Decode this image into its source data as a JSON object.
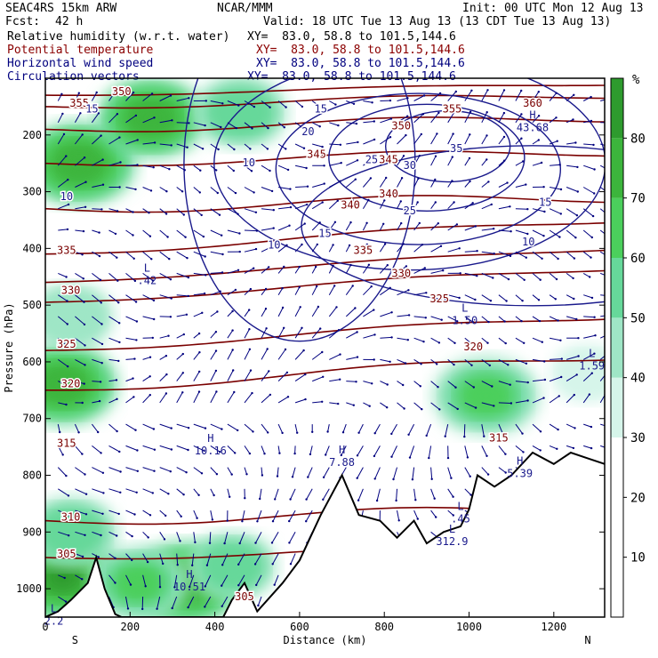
{
  "header": {
    "model": "SEAC4RS 15km ARW",
    "org": "NCAR/MMM",
    "init": "Init: 00 UTC Mon 12 Aug 13",
    "fcst_label": "Fcst:",
    "fcst_value": "42 h",
    "valid": "Valid: 18 UTC Tue 13 Aug 13 (13 CDT Tue 13 Aug 13)",
    "fields": [
      {
        "name": "Relative humidity (w.r.t. water)",
        "xy": "XY=  83.0, 58.8 to 101.5,144.6",
        "color": "#000000"
      },
      {
        "name": "Potential temperature",
        "xy": "XY=  83.0, 58.8 to 101.5,144.6",
        "color": "#8b0000"
      },
      {
        "name": "Horizontal wind speed",
        "xy": "XY=  83.0, 58.8 to 101.5,144.6",
        "color": "#00007f"
      },
      {
        "name": "Circulation vectors",
        "xy": "XY=  83.0, 58.8 to 101.5,144.6",
        "color": "#00007f"
      }
    ]
  },
  "chart_data": {
    "type": "heatmap",
    "xlabel": "Distance (km)",
    "ylabel": "Pressure (hPa)",
    "xlim": [
      0,
      1320
    ],
    "ylim": [
      1050,
      100
    ],
    "x_ticks": [
      0,
      200,
      400,
      600,
      800,
      1000,
      1200
    ],
    "y_ticks": [
      200,
      300,
      400,
      500,
      600,
      700,
      800,
      900,
      1000
    ],
    "endpoint_labels": {
      "left": "S",
      "right": "N"
    },
    "colorbar": {
      "unit": "%",
      "levels": [
        10,
        20,
        30,
        40,
        50,
        60,
        70,
        80
      ],
      "colors": [
        "#ffffff",
        "#ffffff",
        "#ffffff",
        "#d6f5ea",
        "#9fe6c6",
        "#66d89a",
        "#4bcf5c",
        "#3cb53c",
        "#2e9b2e"
      ]
    },
    "humid_regions": [
      {
        "x": 80,
        "p": 250,
        "rh": 75
      },
      {
        "x": 250,
        "p": 170,
        "rh": 70
      },
      {
        "x": 460,
        "p": 160,
        "rh": 55
      },
      {
        "x": 40,
        "p": 640,
        "rh": 72
      },
      {
        "x": 60,
        "p": 520,
        "rh": 45
      },
      {
        "x": 1040,
        "p": 660,
        "rh": 68
      },
      {
        "x": 1280,
        "p": 620,
        "rh": 35
      },
      {
        "x": 40,
        "p": 980,
        "rh": 80
      },
      {
        "x": 60,
        "p": 900,
        "rh": 55
      },
      {
        "x": 330,
        "p": 990,
        "rh": 75
      },
      {
        "x": 220,
        "p": 990,
        "rh": 60
      },
      {
        "x": 440,
        "p": 960,
        "rh": 50
      }
    ],
    "theta_labels": [
      {
        "text": "350",
        "x": 180,
        "p": 130
      },
      {
        "text": "355",
        "x": 80,
        "p": 150
      },
      {
        "text": "350",
        "x": 840,
        "p": 190
      },
      {
        "text": "355",
        "x": 960,
        "p": 160
      },
      {
        "text": "360",
        "x": 1150,
        "p": 150
      },
      {
        "text": "345",
        "x": 640,
        "p": 240
      },
      {
        "text": "345",
        "x": 810,
        "p": 250
      },
      {
        "text": "340",
        "x": 720,
        "p": 330
      },
      {
        "text": "340",
        "x": 810,
        "p": 310
      },
      {
        "text": "335",
        "x": 50,
        "p": 410
      },
      {
        "text": "335",
        "x": 750,
        "p": 410
      },
      {
        "text": "330",
        "x": 60,
        "p": 480
      },
      {
        "text": "330",
        "x": 840,
        "p": 450
      },
      {
        "text": "325",
        "x": 50,
        "p": 575
      },
      {
        "text": "325",
        "x": 930,
        "p": 495
      },
      {
        "text": "320",
        "x": 60,
        "p": 645
      },
      {
        "text": "320",
        "x": 1010,
        "p": 580
      },
      {
        "text": "315",
        "x": 50,
        "p": 750
      },
      {
        "text": "315",
        "x": 1070,
        "p": 740
      },
      {
        "text": "310",
        "x": 60,
        "p": 880
      },
      {
        "text": "305",
        "x": 50,
        "p": 945
      },
      {
        "text": "305",
        "x": 470,
        "p": 1020
      }
    ],
    "speed_labels": [
      {
        "text": "15",
        "x": 110,
        "p": 160
      },
      {
        "text": "15",
        "x": 650,
        "p": 160
      },
      {
        "text": "20",
        "x": 620,
        "p": 200
      },
      {
        "text": "25",
        "x": 770,
        "p": 250
      },
      {
        "text": "30",
        "x": 860,
        "p": 260
      },
      {
        "text": "35",
        "x": 970,
        "p": 230
      },
      {
        "text": "25",
        "x": 860,
        "p": 340
      },
      {
        "text": "10",
        "x": 50,
        "p": 315
      },
      {
        "text": "10",
        "x": 480,
        "p": 255
      },
      {
        "text": "10",
        "x": 540,
        "p": 400
      },
      {
        "text": "15",
        "x": 660,
        "p": 380
      },
      {
        "text": "15",
        "x": 1180,
        "p": 325
      },
      {
        "text": "10",
        "x": 1140,
        "p": 395
      }
    ],
    "extrema": [
      {
        "kind": "H",
        "value": "43.68",
        "x": 1150,
        "p": 190
      },
      {
        "kind": "L",
        "value": ".42",
        "x": 240,
        "p": 460
      },
      {
        "kind": "L",
        "value": "1.50",
        "x": 990,
        "p": 530
      },
      {
        "kind": "L",
        "value": "1.59",
        "x": 1290,
        "p": 610
      },
      {
        "kind": "H",
        "value": "10.16",
        "x": 390,
        "p": 760
      },
      {
        "kind": "H",
        "value": "7.88",
        "x": 700,
        "p": 780
      },
      {
        "kind": "H",
        "value": "5.39",
        "x": 1120,
        "p": 800
      },
      {
        "kind": "L",
        "value": ".45",
        "x": 980,
        "p": 880
      },
      {
        "kind": "L",
        "value": "312.9",
        "x": 960,
        "p": 920
      },
      {
        "kind": "H",
        "value": "10.51",
        "x": 340,
        "p": 1000
      },
      {
        "kind": "L",
        "value": "2.2",
        "x": 20,
        "p": 1060
      }
    ],
    "terrain": [
      {
        "x": 0,
        "p": 1050
      },
      {
        "x": 30,
        "p": 1040
      },
      {
        "x": 60,
        "p": 1020
      },
      {
        "x": 100,
        "p": 990
      },
      {
        "x": 120,
        "p": 945
      },
      {
        "x": 140,
        "p": 1000
      },
      {
        "x": 165,
        "p": 1045
      },
      {
        "x": 180,
        "p": 1050
      },
      {
        "x": 420,
        "p": 1050
      },
      {
        "x": 440,
        "p": 1020
      },
      {
        "x": 470,
        "p": 990
      },
      {
        "x": 500,
        "p": 1040
      },
      {
        "x": 560,
        "p": 990
      },
      {
        "x": 600,
        "p": 950
      },
      {
        "x": 650,
        "p": 870
      },
      {
        "x": 700,
        "p": 800
      },
      {
        "x": 740,
        "p": 870
      },
      {
        "x": 790,
        "p": 880
      },
      {
        "x": 830,
        "p": 910
      },
      {
        "x": 870,
        "p": 880
      },
      {
        "x": 900,
        "p": 920
      },
      {
        "x": 940,
        "p": 900
      },
      {
        "x": 980,
        "p": 890
      },
      {
        "x": 1000,
        "p": 860
      },
      {
        "x": 1020,
        "p": 800
      },
      {
        "x": 1060,
        "p": 820
      },
      {
        "x": 1100,
        "p": 800
      },
      {
        "x": 1150,
        "p": 760
      },
      {
        "x": 1200,
        "p": 780
      },
      {
        "x": 1240,
        "p": 760
      },
      {
        "x": 1280,
        "p": 770
      },
      {
        "x": 1320,
        "p": 780
      }
    ]
  }
}
